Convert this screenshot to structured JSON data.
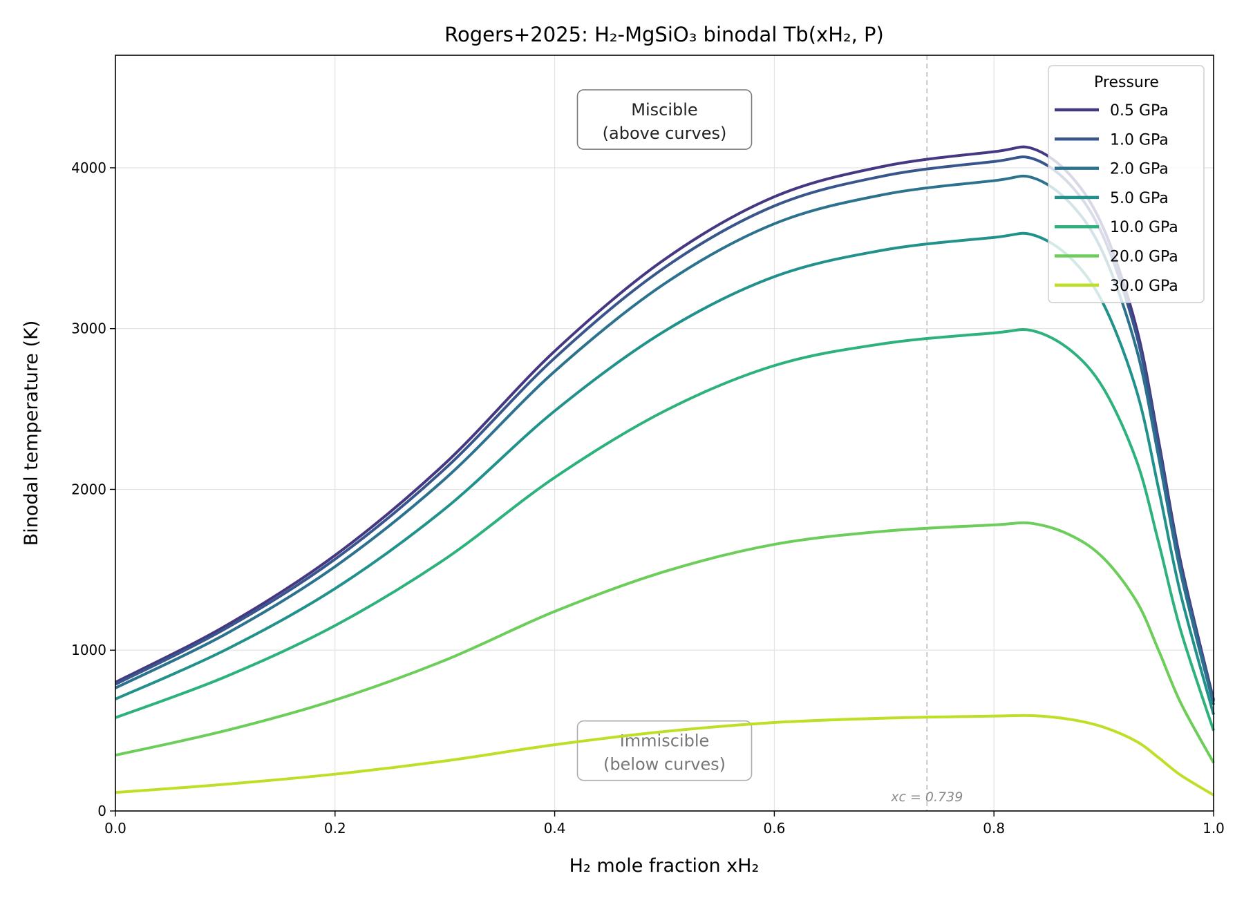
{
  "chart_data": {
    "type": "line",
    "title": "Rogers+2025: H₂-MgSiO₃ binodal Tb(xH₂, P)",
    "xlabel": "H₂ mole fraction xH₂",
    "ylabel": "Binodal temperature (K)",
    "xlim": [
      0,
      1
    ],
    "ylim": [
      0,
      4700
    ],
    "xticks": [
      "0.0",
      "0.2",
      "0.4",
      "0.6",
      "0.8",
      "1.0"
    ],
    "yticks": [
      "0",
      "1000",
      "2000",
      "3000",
      "4000"
    ],
    "grid": true,
    "legend": {
      "title": "Pressure",
      "placement": "top-right"
    },
    "x": [
      0,
      0.1,
      0.2,
      0.3,
      0.4,
      0.5,
      0.6,
      0.7,
      0.8,
      0.835,
      0.87,
      0.9,
      0.93,
      0.95,
      0.97,
      1.0
    ],
    "series": [
      {
        "name": "0.5 GPa",
        "color": "#453781",
        "values": [
          800,
          1150,
          1590,
          2160,
          2860,
          3430,
          3820,
          4010,
          4100,
          4120,
          3950,
          3620,
          3000,
          2300,
          1550,
          690
        ]
      },
      {
        "name": "1.0 GPa",
        "color": "#39568c",
        "values": [
          788,
          1133,
          1566,
          2128,
          2817,
          3379,
          3763,
          3950,
          4039,
          4058,
          3891,
          3566,
          2955,
          2266,
          1527,
          680
        ]
      },
      {
        "name": "2.0 GPa",
        "color": "#2c728e",
        "values": [
          765,
          1099,
          1520,
          2065,
          2734,
          3279,
          3652,
          3834,
          3920,
          3939,
          3776,
          3461,
          2868,
          2199,
          1482,
          660
        ]
      },
      {
        "name": "5.0 GPa",
        "color": "#21918c",
        "values": [
          696,
          1001,
          1383,
          1879,
          2488,
          2984,
          3323,
          3489,
          3567,
          3584,
          3437,
          3149,
          2610,
          2001,
          1349,
          600
        ]
      },
      {
        "name": "10.0 GPa",
        "color": "#2db27d",
        "values": [
          580,
          834,
          1153,
          1566,
          2074,
          2487,
          2770,
          2907,
          2973,
          2987,
          2864,
          2625,
          2175,
          1668,
          1124,
          500
        ]
      },
      {
        "name": "20.0 GPa",
        "color": "#6ccd5a",
        "values": [
          347,
          499,
          690,
          937,
          1241,
          1489,
          1658,
          1740,
          1779,
          1788,
          1714,
          1571,
          1302,
          998,
          673,
          300
        ]
      },
      {
        "name": "30.0 GPa",
        "color": "#bddf26",
        "values": [
          115,
          166,
          229,
          311,
          412,
          494,
          550,
          577,
          590,
          593,
          569,
          521,
          432,
          331,
          223,
          99
        ]
      }
    ],
    "annotations": {
      "miscible": [
        "Miscible",
        "(above curves)"
      ],
      "immiscible": [
        "Immiscible",
        "(below curves)"
      ],
      "critical_line": {
        "x": 0.739,
        "label": "xc = 0.739"
      }
    }
  }
}
